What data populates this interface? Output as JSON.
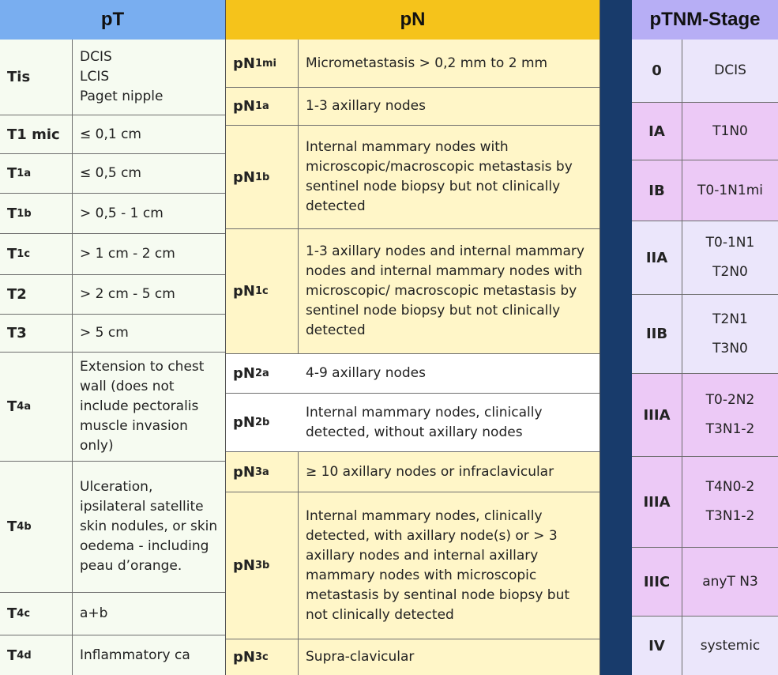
{
  "pT": {
    "header": "pT",
    "rows": [
      {
        "label": "Tis",
        "sub": "",
        "desc": "DCIS\nLCIS\nPaget nipple"
      },
      {
        "label": "T1 mic",
        "sub": "",
        "desc": "≤ 0,1 cm"
      },
      {
        "label": "T",
        "sub": "1a",
        "desc": "≤ 0,5 cm"
      },
      {
        "label": "T",
        "sub": "1b",
        "desc": "> 0,5 - 1 cm"
      },
      {
        "label": "T",
        "sub": "1c",
        "desc": "> 1 cm - 2 cm"
      },
      {
        "label": "T2",
        "sub": "",
        "desc": "> 2 cm - 5 cm"
      },
      {
        "label": "T3",
        "sub": "",
        "desc": "> 5 cm"
      },
      {
        "label": "T",
        "sub": "4a",
        "desc": "Extension to chest wall (does not include pectoralis muscle invasion only)"
      },
      {
        "label": "T",
        "sub": "4b",
        "desc": "Ulceration, ipsilateral satellite skin nodules, or skin oedema - including peau d’orange."
      },
      {
        "label": "T",
        "sub": "4c",
        "desc": "a+b"
      },
      {
        "label": "T",
        "sub": "4d",
        "desc": "Inflammatory ca"
      }
    ]
  },
  "pN": {
    "header": "pN",
    "rows": [
      {
        "label": "pN",
        "sub": "1mi",
        "desc": "Micrometastasis > 0,2 mm to 2 mm"
      },
      {
        "label": "pN",
        "sub": "1a",
        "desc": "1-3 axillary nodes"
      },
      {
        "label": "pN",
        "sub": "1b",
        "desc": "Internal mammary nodes with microscopic/macroscopic metastasis by sentinel node biopsy but not clinically detected"
      },
      {
        "label": "pN",
        "sub": "1c",
        "desc": "1-3 axillary nodes and internal mammary nodes and internal mammary nodes with microscopic/ macroscopic metastasis by sentinel node biopsy but not clinically detected"
      },
      {
        "label": "pN",
        "sub": "2a",
        "desc": "4-9 axillary nodes"
      },
      {
        "label": "pN",
        "sub": "2b",
        "desc": "Internal mammary nodes, clinically detected, without axillary nodes"
      },
      {
        "label": "pN",
        "sub": "3a",
        "desc": "≥ 10 axillary nodes or infraclavicular"
      },
      {
        "label": "pN",
        "sub": "3b",
        "desc": "Internal mammary nodes, clinically detected, with axillary node(s) or > 3 axillary nodes and internal axillary mammary nodes with microscopic metastasis by sentinal node biopsy but not clinically detected"
      },
      {
        "label": "pN",
        "sub": "3c",
        "desc": "Supra-clavicular"
      }
    ]
  },
  "pTNM": {
    "header": "pTNM-Stage",
    "rows": [
      {
        "stage": "0",
        "desc": "DCIS",
        "desc2": ""
      },
      {
        "stage": "IA",
        "desc": "T1N0",
        "desc2": ""
      },
      {
        "stage": "IB",
        "desc": "T0-1N1mi",
        "desc2": ""
      },
      {
        "stage": "IIA",
        "desc": "T0-1N1",
        "desc2": "T2N0"
      },
      {
        "stage": "IIB",
        "desc": "T2N1",
        "desc2": "T3N0"
      },
      {
        "stage": "IIIA",
        "desc": "T0-2N2",
        "desc2": "T3N1-2"
      },
      {
        "stage": "IIIA",
        "desc": "T4N0-2",
        "desc2": "T3N1-2"
      },
      {
        "stage": "IIIC",
        "desc": "anyT N3",
        "desc2": ""
      },
      {
        "stage": "IV",
        "desc": "systemic",
        "desc2": ""
      }
    ]
  },
  "colors": {
    "pT_header": "#79aef0",
    "pN_header": "#f5c31b",
    "pTNM_header": "#b7aef5",
    "divider": "#183b6b"
  }
}
